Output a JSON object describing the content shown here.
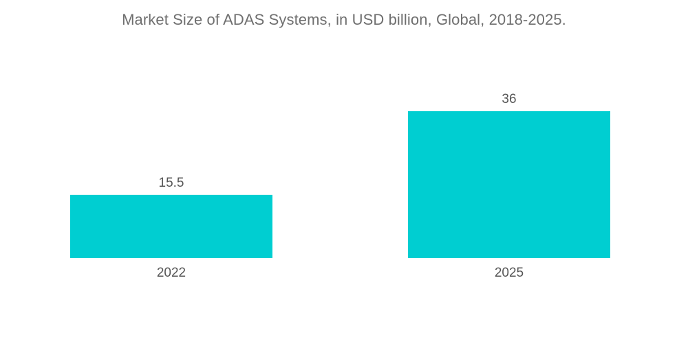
{
  "chart_data": {
    "type": "bar",
    "title": "Market Size of ADAS Systems, in USD billion, Global, 2018-2025.",
    "categories": [
      "2022",
      "2025"
    ],
    "values": [
      15.5,
      36
    ],
    "value_labels": [
      "15.5",
      "36"
    ],
    "xlabel": "",
    "ylabel": "",
    "ylim": [
      0,
      36
    ],
    "grid": false,
    "legend": "none",
    "bar_color": "#00CED1"
  }
}
